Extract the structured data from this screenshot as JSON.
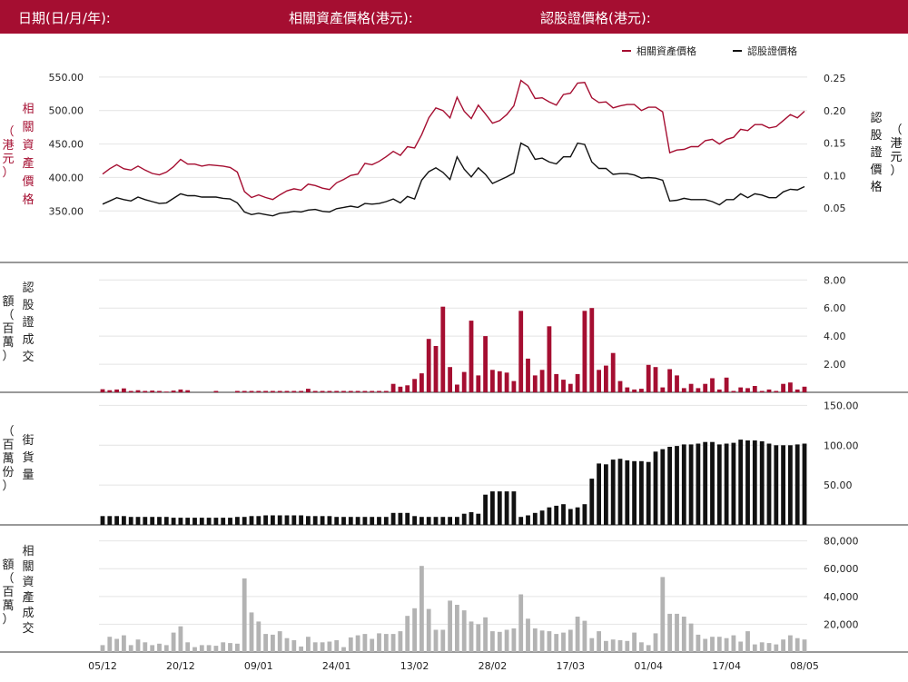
{
  "header": {
    "date_label": "日期(日/月/年):",
    "underlying_price_label": "相關資產價格(港元):",
    "warrant_price_label": "認股證價格(港元):"
  },
  "colors": {
    "brand": "#a50e31",
    "underlying": "#a50e31",
    "warrant": "#111111",
    "volume_warrant_bar": "#a50e31",
    "outstanding_bar": "#111111",
    "underlying_turnover_bar": "#b3b3b3",
    "grid": "#e4e4e4"
  },
  "chart_data": [
    {
      "type": "line",
      "legend": [
        "相關資產價格",
        "認股證價格"
      ],
      "legend_position": "top-right",
      "ylabel_left": "相關資產價格（港元）",
      "ylabel_right": "認股證價格（港元）",
      "left_ticks": [
        "350.00",
        "400.00",
        "450.00",
        "500.00",
        "550.00"
      ],
      "right_ticks": [
        "0.05",
        "0.10",
        "0.15",
        "0.20",
        "0.25"
      ],
      "ylim_left": [
        330,
        558
      ],
      "ylim_right": [
        0.025,
        0.26
      ],
      "grid": true,
      "series": [
        {
          "name": "相關資產價格",
          "axis": "left",
          "values": [
            405,
            413,
            419,
            413,
            411,
            417,
            411,
            406,
            404,
            408,
            416,
            427,
            420,
            420,
            417,
            419,
            418,
            417,
            415,
            408,
            379,
            370,
            374,
            370,
            367,
            374,
            380,
            383,
            381,
            390,
            388,
            384,
            382,
            392,
            397,
            403,
            405,
            421,
            419,
            424,
            431,
            439,
            433,
            446,
            444,
            464,
            489,
            504,
            500,
            489,
            520,
            499,
            488,
            508,
            495,
            481,
            485,
            494,
            507,
            545,
            537,
            518,
            519,
            513,
            508,
            524,
            526,
            541,
            542,
            519,
            512,
            513,
            504,
            507,
            509,
            509,
            500,
            505,
            505,
            498,
            437,
            441,
            442,
            446,
            446,
            455,
            457,
            450,
            457,
            460,
            472,
            470,
            479,
            479,
            474,
            476,
            485,
            494,
            489,
            499
          ]
        },
        {
          "name": "認股證價格",
          "axis": "right",
          "values": [
            0.056,
            0.061,
            0.066,
            0.063,
            0.061,
            0.067,
            0.063,
            0.06,
            0.057,
            0.058,
            0.065,
            0.072,
            0.069,
            0.069,
            0.067,
            0.067,
            0.067,
            0.065,
            0.064,
            0.058,
            0.044,
            0.04,
            0.042,
            0.04,
            0.038,
            0.042,
            0.043,
            0.045,
            0.044,
            0.047,
            0.048,
            0.045,
            0.044,
            0.049,
            0.051,
            0.053,
            0.051,
            0.057,
            0.056,
            0.057,
            0.06,
            0.064,
            0.058,
            0.068,
            0.064,
            0.093,
            0.106,
            0.112,
            0.105,
            0.094,
            0.129,
            0.11,
            0.098,
            0.112,
            0.102,
            0.088,
            0.093,
            0.098,
            0.104,
            0.15,
            0.144,
            0.125,
            0.127,
            0.121,
            0.118,
            0.129,
            0.129,
            0.15,
            0.148,
            0.121,
            0.111,
            0.111,
            0.102,
            0.103,
            0.103,
            0.101,
            0.096,
            0.097,
            0.096,
            0.093,
            0.061,
            0.062,
            0.065,
            0.063,
            0.063,
            0.063,
            0.06,
            0.055,
            0.063,
            0.063,
            0.072,
            0.066,
            0.072,
            0.07,
            0.066,
            0.066,
            0.075,
            0.079,
            0.078,
            0.083
          ]
        }
      ]
    },
    {
      "type": "bar",
      "ylabel": "認股證成交額（百萬）",
      "ticks": [
        "2.00",
        "4.00",
        "6.00",
        "8.00"
      ],
      "ylim": [
        0,
        8.6
      ],
      "series": [
        {
          "values": [
            0.22,
            0.15,
            0.2,
            0.28,
            0.1,
            0.15,
            0.1,
            0.12,
            0.1,
            0.05,
            0.12,
            0.2,
            0.15,
            0,
            0,
            0,
            0.1,
            0,
            0,
            0.1,
            0.1,
            0.1,
            0.1,
            0.1,
            0.1,
            0.1,
            0.1,
            0.1,
            0.1,
            0.25,
            0.1,
            0.1,
            0.1,
            0.1,
            0.1,
            0.1,
            0.1,
            0.1,
            0.1,
            0.1,
            0.1,
            0.6,
            0.4,
            0.5,
            0.95,
            1.35,
            3.8,
            3.3,
            6.1,
            1.8,
            0.55,
            1.45,
            5.1,
            1.2,
            4.0,
            1.6,
            1.5,
            1.4,
            0.8,
            5.8,
            2.4,
            1.2,
            1.6,
            4.7,
            1.3,
            0.9,
            0.6,
            1.3,
            5.8,
            6.0,
            1.6,
            1.9,
            2.8,
            0.8,
            0.35,
            0.2,
            0.25,
            1.95,
            1.8,
            0.35,
            1.65,
            1.2,
            0.3,
            0.6,
            0.3,
            0.6,
            1.0,
            0.2,
            1.05,
            0.1,
            0.35,
            0.3,
            0.45,
            0.1,
            0.2,
            0.1,
            0.6,
            0.7,
            0.2,
            0.4
          ]
        }
      ]
    },
    {
      "type": "bar",
      "ylabel": "街貨量（百萬份）",
      "ticks": [
        "50.00",
        "100.00",
        "150.00"
      ],
      "ylim": [
        0,
        155
      ],
      "series": [
        {
          "values": [
            11,
            11,
            11,
            11,
            10,
            10,
            10,
            10,
            10,
            10,
            9,
            9,
            9,
            9,
            9,
            9,
            9,
            9,
            9,
            10,
            10,
            11,
            11,
            12,
            12,
            12,
            12,
            12,
            12,
            11,
            11,
            11,
            11,
            10,
            10,
            10,
            10,
            10,
            10,
            10,
            10,
            15,
            15,
            15,
            11,
            10,
            10,
            10,
            10,
            10,
            10,
            14,
            16,
            14,
            38,
            42,
            42,
            42,
            42,
            10,
            12,
            15,
            18,
            22,
            24,
            26,
            20,
            22,
            26,
            58,
            77,
            76,
            82,
            83,
            81,
            80,
            80,
            79,
            92,
            95,
            98,
            99,
            101,
            101,
            102,
            104,
            104,
            101,
            102,
            103,
            107,
            106,
            106,
            105,
            102,
            100,
            100,
            100,
            101,
            102
          ]
        }
      ]
    },
    {
      "type": "bar",
      "ylabel": "相關資產成交額（百萬）",
      "ticks": [
        "20,000",
        "40,000",
        "60,000",
        "80,000"
      ],
      "ylim": [
        0,
        85000
      ],
      "series": [
        {
          "values": [
            5000,
            11000,
            9500,
            12000,
            5000,
            9000,
            7000,
            5000,
            6000,
            5000,
            14000,
            18500,
            7000,
            3500,
            5000,
            5000,
            4500,
            7000,
            6500,
            6000,
            53000,
            28500,
            22000,
            13000,
            12500,
            15000,
            10000,
            8500,
            4000,
            11000,
            7000,
            7000,
            7500,
            8500,
            3500,
            10500,
            12000,
            13000,
            9500,
            13500,
            13000,
            13000,
            15000,
            26000,
            31500,
            62000,
            31000,
            16000,
            16000,
            37000,
            34000,
            30000,
            22000,
            20000,
            25000,
            15000,
            14500,
            16000,
            17000,
            41500,
            24000,
            17000,
            15500,
            15000,
            13000,
            14000,
            16000,
            25500,
            22500,
            10000,
            15000,
            8000,
            9000,
            8500,
            8000,
            14000,
            7000,
            5000,
            13500,
            54000,
            27500,
            27500,
            25500,
            20500,
            12500,
            9500,
            11000,
            11000,
            10000,
            12000,
            7500,
            15000,
            5500,
            7000,
            6500,
            5500,
            9000,
            12000,
            10000,
            9000
          ]
        }
      ]
    }
  ],
  "x_axis": {
    "labels": [
      "05/12",
      "20/12",
      "09/01",
      "24/01",
      "13/02",
      "28/02",
      "17/03",
      "01/04",
      "17/04",
      "08/05"
    ],
    "label_indices": [
      0,
      11,
      22,
      33,
      44,
      55,
      66,
      77,
      88,
      99
    ]
  }
}
